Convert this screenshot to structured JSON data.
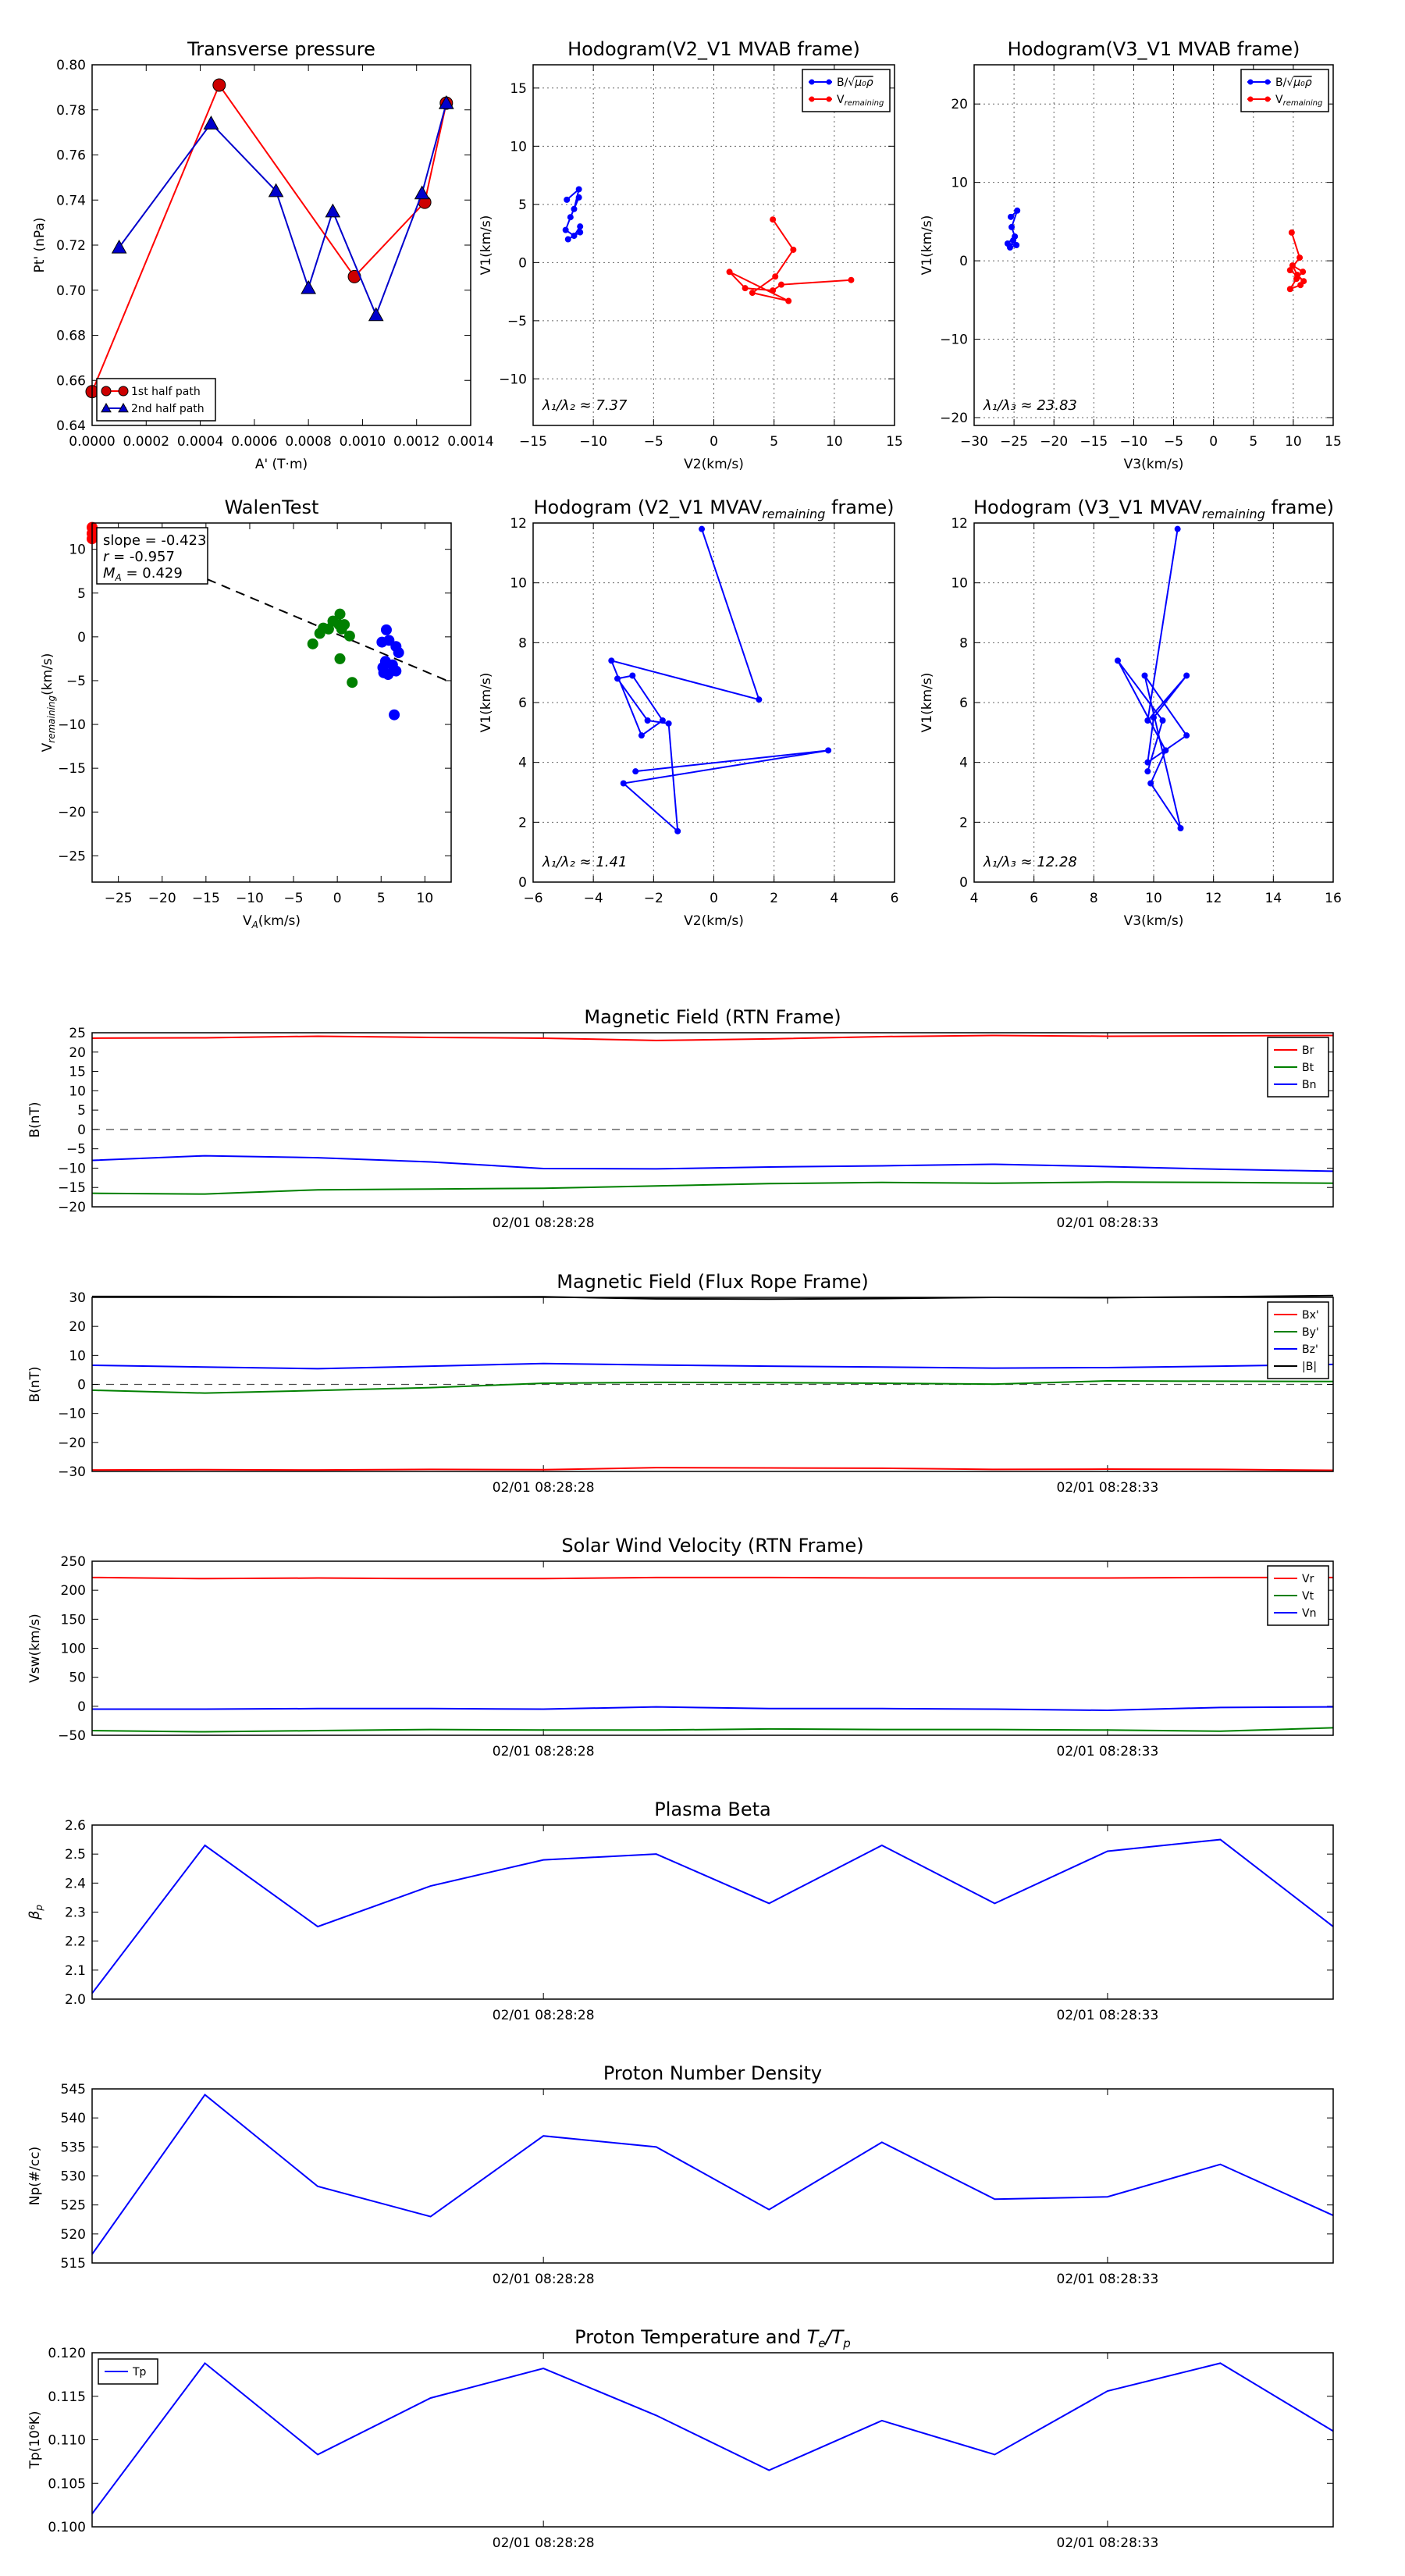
{
  "chart_data": [
    {
      "id": "pt",
      "type": "line",
      "title": "Transverse pressure",
      "xlabel": "A' (T·m)",
      "ylabel": "Pt' (nPa)",
      "xlim": [
        0.0,
        0.0014
      ],
      "ylim": [
        0.64,
        0.8
      ],
      "xticks": [
        0.0,
        0.0002,
        0.0004,
        0.0006,
        0.0008,
        0.001,
        0.0012,
        0.0014
      ],
      "xticklabels": [
        "0.0000",
        "0.0002",
        "0.0004",
        "0.0006",
        "0.0008",
        "0.0010",
        "0.0012",
        "0.0014"
      ],
      "yticks": [
        0.64,
        0.66,
        0.68,
        0.7,
        0.72,
        0.74,
        0.76,
        0.78,
        0.8
      ],
      "yticklabels": [
        "0.64",
        "0.66",
        "0.68",
        "0.70",
        "0.72",
        "0.74",
        "0.76",
        "0.78",
        "0.80"
      ],
      "grid": false,
      "legend": "lower-left",
      "series": [
        {
          "name": "1st half path",
          "color": "#ff0000",
          "marker": "circle",
          "markerColor": "#cc0000",
          "x": [
            0.0,
            0.00047,
            0.00097,
            0.00123,
            0.00131
          ],
          "y": [
            0.655,
            0.791,
            0.706,
            0.739,
            0.783
          ]
        },
        {
          "name": "2nd half path",
          "color": "#0000cc",
          "marker": "triangle",
          "markerColor": "#0000cc",
          "x": [
            0.0001,
            0.00044,
            0.00068,
            0.0008,
            0.00089,
            0.00105,
            0.00122,
            0.00131
          ],
          "y": [
            0.719,
            0.774,
            0.744,
            0.701,
            0.735,
            0.689,
            0.743,
            0.783
          ]
        }
      ]
    },
    {
      "id": "h1",
      "type": "line",
      "title": "Hodogram(V2_V1 MVAB frame)",
      "xlabel": "V2(km/s)",
      "ylabel": "V1(km/s)",
      "xlim": [
        -15,
        15
      ],
      "ylim": [
        -14,
        17
      ],
      "xticks": [
        -15,
        -10,
        -5,
        0,
        5,
        10,
        15
      ],
      "xticklabels": [
        "−15",
        "−10",
        "−5",
        "0",
        "5",
        "10",
        "15"
      ],
      "yticks": [
        -10,
        -5,
        0,
        5,
        10,
        15
      ],
      "yticklabels": [
        "−10",
        "−5",
        "0",
        "5",
        "10",
        "15"
      ],
      "grid": true,
      "legend": "top-right",
      "annotation": "λ₁/λ₂ ≈ 7.37",
      "series": [
        {
          "name": "B/√μ₀ρ",
          "color": "#0000ff",
          "marker": "dot",
          "x": [
            -12.2,
            -11.2,
            -11.6,
            -11.2,
            -11.9,
            -12.3,
            -11.6,
            -11.1,
            -11.1,
            -12.1
          ],
          "y": [
            5.4,
            6.3,
            4.6,
            5.6,
            3.9,
            2.8,
            2.3,
            3.1,
            2.6,
            2.0
          ]
        },
        {
          "name": "V_remaining",
          "color": "#ff0000",
          "marker": "dot",
          "x": [
            4.9,
            6.6,
            5.1,
            3.2,
            6.2,
            1.3,
            2.6,
            4.9,
            5.6,
            11.4
          ],
          "y": [
            3.7,
            1.1,
            -1.2,
            -2.6,
            -3.3,
            -0.8,
            -2.2,
            -2.4,
            -1.9,
            -1.5
          ]
        }
      ]
    },
    {
      "id": "h2",
      "type": "line",
      "title": "Hodogram(V3_V1 MVAB frame)",
      "xlabel": "V3(km/s)",
      "ylabel": "V1(km/s)",
      "xlim": [
        -30,
        15
      ],
      "ylim": [
        -21,
        25
      ],
      "xticks": [
        -30,
        -25,
        -20,
        -15,
        -10,
        -5,
        0,
        5,
        10,
        15
      ],
      "xticklabels": [
        "−30",
        "−25",
        "−20",
        "−15",
        "−10",
        "−5",
        "0",
        "5",
        "10",
        "15"
      ],
      "yticks": [
        -20,
        -10,
        0,
        10,
        20
      ],
      "yticklabels": [
        "−20",
        "−10",
        "0",
        "10",
        "20"
      ],
      "grid": true,
      "legend": "top-right",
      "annotation": "λ₁/λ₃ ≈ 23.83",
      "series": [
        {
          "name": "B/√μ₀ρ",
          "color": "#0000ff",
          "marker": "dot",
          "x": [
            -25.4,
            -24.6,
            -25.3,
            -24.9,
            -25.8,
            -24.7,
            -25.5,
            -25.1
          ],
          "y": [
            5.6,
            6.4,
            4.3,
            3.1,
            2.2,
            2.0,
            1.7,
            2.6
          ]
        },
        {
          "name": "V_remaining",
          "color": "#ff0000",
          "marker": "dot",
          "x": [
            9.8,
            10.8,
            9.6,
            11.3,
            10.5,
            9.9,
            11.2,
            10.4,
            9.6,
            10.9
          ],
          "y": [
            3.6,
            0.4,
            -1.2,
            -2.6,
            -1.8,
            -0.6,
            -1.4,
            -2.3,
            -3.6,
            -3.1
          ]
        }
      ]
    },
    {
      "id": "walen",
      "type": "scatter",
      "title": "WalenTest",
      "xlabel": "V_A(km/s)",
      "ylabel": "V_remaining(km/s)",
      "xlim": [
        -28,
        13
      ],
      "ylim": [
        -28,
        13
      ],
      "xticks": [
        -25,
        -20,
        -15,
        -10,
        -5,
        0,
        5,
        10
      ],
      "xticklabels": [
        "−25",
        "−20",
        "−15",
        "−10",
        "−5",
        "0",
        "5",
        "10"
      ],
      "yticks": [
        -25,
        -20,
        -15,
        -10,
        -5,
        0,
        5,
        10
      ],
      "yticklabels": [
        "−25",
        "−20",
        "−15",
        "−10",
        "−5",
        "0",
        "5",
        "10"
      ],
      "grid": false,
      "fit": {
        "slope": -0.423,
        "intercept": 0.3
      },
      "stats": [
        "slope = -0.423",
        "r = -0.957",
        "M_A = 0.429"
      ],
      "series": [
        {
          "color": "#008000",
          "x": [
            -2.8,
            -2.0,
            -1.6,
            -1.0,
            -0.5,
            0.2,
            0.3,
            0.5,
            0.8,
            0.3,
            1.4,
            1.7
          ],
          "y": [
            -0.8,
            0.4,
            1.0,
            0.9,
            1.8,
            1.4,
            2.6,
            0.9,
            1.4,
            -2.5,
            0.1,
            -5.2
          ]
        },
        {
          "color": "#0000ff",
          "x": [
            5.6,
            5.9,
            6.7,
            7.0,
            5.1,
            5.5,
            6.3,
            5.2,
            6.7,
            5.3,
            5.8,
            6.4,
            6.5
          ],
          "y": [
            0.8,
            -0.4,
            -1.1,
            -1.8,
            -0.6,
            -2.8,
            -3.2,
            -3.5,
            -3.9,
            -4.1,
            -4.3,
            -3.8,
            -8.9
          ]
        },
        {
          "color": "#ff0000",
          "x": [
            -28,
            -28,
            -28
          ],
          "y": [
            12.5,
            11.8,
            11.2
          ]
        }
      ]
    },
    {
      "id": "h3",
      "type": "line",
      "title": "Hodogram (V2_V1 MVAV_remaining frame)",
      "xlabel": "V2(km/s)",
      "ylabel": "V1(km/s)",
      "xlim": [
        -6,
        6
      ],
      "ylim": [
        0,
        12
      ],
      "xticks": [
        -6,
        -4,
        -2,
        0,
        2,
        4,
        6
      ],
      "xticklabels": [
        "−6",
        "−4",
        "−2",
        "0",
        "2",
        "4",
        "6"
      ],
      "yticks": [
        0,
        2,
        4,
        6,
        8,
        10,
        12
      ],
      "yticklabels": [
        "0",
        "2",
        "4",
        "6",
        "8",
        "10",
        "12"
      ],
      "grid": true,
      "annotation": "λ₁/λ₂ ≈ 1.41",
      "series": [
        {
          "color": "#0000ff",
          "marker": "dot",
          "x": [
            -0.4,
            1.5,
            -3.4,
            -2.4,
            -1.7,
            -2.7,
            -3.2,
            -2.2,
            -1.5,
            -1.2,
            -3.0,
            3.8,
            -2.6
          ],
          "y": [
            11.8,
            6.1,
            7.4,
            4.9,
            5.4,
            6.9,
            6.8,
            5.4,
            5.3,
            1.7,
            3.3,
            4.4,
            3.7
          ]
        }
      ]
    },
    {
      "id": "h4",
      "type": "line",
      "title": "Hodogram (V3_V1 MVAV_remaining frame)",
      "xlabel": "V3(km/s)",
      "ylabel": "V1(km/s)",
      "xlim": [
        4,
        16
      ],
      "ylim": [
        0,
        12
      ],
      "xticks": [
        4,
        6,
        8,
        10,
        12,
        14,
        16
      ],
      "xticklabels": [
        "4",
        "6",
        "8",
        "10",
        "12",
        "14",
        "16"
      ],
      "yticks": [
        0,
        2,
        4,
        6,
        8,
        10,
        12
      ],
      "yticklabels": [
        "0",
        "2",
        "4",
        "6",
        "8",
        "10",
        "12"
      ],
      "grid": true,
      "annotation": "λ₁/λ₃ ≈ 12.28",
      "series": [
        {
          "color": "#0000ff",
          "marker": "dot",
          "x": [
            10.8,
            9.8,
            11.1,
            10.0,
            9.8,
            11.1,
            9.7,
            10.9,
            9.9,
            10.4,
            8.8,
            10.3,
            9.8
          ],
          "y": [
            11.8,
            5.4,
            6.9,
            5.5,
            4.0,
            4.9,
            6.9,
            1.8,
            3.3,
            4.4,
            7.4,
            5.4,
            3.7
          ]
        }
      ]
    },
    {
      "id": "bfield",
      "type": "line",
      "title": "Magnetic Field (RTN Frame)",
      "ylabel": "B(nT)",
      "ylim": [
        -20,
        25
      ],
      "yticks": [
        -20,
        -15,
        -10,
        -5,
        0,
        5,
        10,
        15,
        20,
        25
      ],
      "yticklabels": [
        "−20",
        "−15",
        "−10",
        "−5",
        "0",
        "5",
        "10",
        "15",
        "20",
        "25"
      ],
      "xlim": [
        0,
        11
      ],
      "xticks": [
        4,
        9
      ],
      "xticklabels": [
        "02/01 08:28:28",
        "02/01 08:28:33"
      ],
      "zeroline": true,
      "legend": "top-right",
      "x": [
        0,
        1,
        2,
        3,
        4,
        5,
        6,
        7,
        8,
        9,
        10,
        11
      ],
      "series": [
        {
          "name": "Br",
          "color": "#ff0000",
          "values": [
            23.6,
            23.7,
            24.1,
            23.8,
            23.6,
            23.0,
            23.4,
            24.0,
            24.3,
            24.1,
            24.2,
            24.3
          ]
        },
        {
          "name": "Bt",
          "color": "#008000",
          "values": [
            -16.5,
            -16.7,
            -15.6,
            -15.4,
            -15.2,
            -14.6,
            -14.0,
            -13.7,
            -13.9,
            -13.6,
            -13.7,
            -13.9
          ]
        },
        {
          "name": "Bn",
          "color": "#0000ff",
          "values": [
            -8.0,
            -6.8,
            -7.3,
            -8.4,
            -10.1,
            -10.2,
            -9.7,
            -9.4,
            -9.0,
            -9.6,
            -10.3,
            -10.8
          ]
        }
      ]
    },
    {
      "id": "frframe",
      "type": "line",
      "title": "Magnetic Field (Flux Rope Frame)",
      "ylabel": "B(nT)",
      "ylim": [
        -30,
        30
      ],
      "yticks": [
        -30,
        -20,
        -10,
        0,
        10,
        20,
        30
      ],
      "yticklabels": [
        "−30",
        "−20",
        "−10",
        "0",
        "10",
        "20",
        "30"
      ],
      "xlim": [
        0,
        11
      ],
      "xticks": [
        4,
        9
      ],
      "xticklabels": [
        "02/01 08:28:28",
        "02/01 08:28:33"
      ],
      "zeroline": true,
      "legend": "top-right",
      "x": [
        0,
        1,
        2,
        3,
        4,
        5,
        6,
        7,
        8,
        9,
        10,
        11
      ],
      "series": [
        {
          "name": "Bx'",
          "color": "#ff0000",
          "values": [
            -29.5,
            -29.4,
            -29.5,
            -29.3,
            -29.4,
            -28.7,
            -28.8,
            -28.9,
            -29.3,
            -29.2,
            -29.3,
            -29.6
          ]
        },
        {
          "name": "By'",
          "color": "#008000",
          "values": [
            -2.0,
            -3.0,
            -2.1,
            -1.1,
            0.4,
            0.7,
            0.6,
            0.4,
            0.1,
            1.2,
            1.1,
            1.0
          ]
        },
        {
          "name": "Bz'",
          "color": "#0000ff",
          "values": [
            6.6,
            6.0,
            5.4,
            6.3,
            7.2,
            6.7,
            6.3,
            6.0,
            5.6,
            5.8,
            6.3,
            6.9
          ]
        },
        {
          "name": "|B|",
          "color": "#000000",
          "values": [
            30.3,
            30.3,
            30.2,
            30.1,
            30.2,
            29.5,
            29.4,
            29.6,
            30.0,
            29.9,
            30.2,
            30.6
          ]
        }
      ]
    },
    {
      "id": "vsw",
      "type": "line",
      "title": "Solar Wind Velocity (RTN Frame)",
      "ylabel": "Vsw(km/s)",
      "ylim": [
        -50,
        250
      ],
      "yticks": [
        -50,
        0,
        50,
        100,
        150,
        200,
        250
      ],
      "yticklabels": [
        "−50",
        "0",
        "50",
        "100",
        "150",
        "200",
        "250"
      ],
      "xlim": [
        0,
        11
      ],
      "xticks": [
        4,
        9
      ],
      "xticklabels": [
        "02/01 08:28:28",
        "02/01 08:28:33"
      ],
      "legend": "top-right",
      "x": [
        0,
        1,
        2,
        3,
        4,
        5,
        6,
        7,
        8,
        9,
        10,
        11
      ],
      "series": [
        {
          "name": "Vr",
          "color": "#ff0000",
          "values": [
            222,
            220,
            221,
            220,
            220,
            222,
            222,
            221,
            221,
            221,
            222,
            222
          ]
        },
        {
          "name": "Vt",
          "color": "#008000",
          "values": [
            -42,
            -44,
            -42,
            -40,
            -41,
            -41,
            -39,
            -40,
            -40,
            -41,
            -43,
            -37
          ]
        },
        {
          "name": "Vn",
          "color": "#0000ff",
          "values": [
            -5,
            -5,
            -4,
            -4,
            -5,
            -1,
            -4,
            -4,
            -5,
            -7,
            -2,
            -1
          ]
        }
      ]
    },
    {
      "id": "beta",
      "type": "line",
      "title": "Plasma Beta",
      "ylabel": "β_p",
      "ylim": [
        2.0,
        2.6
      ],
      "yticks": [
        2.0,
        2.1,
        2.2,
        2.3,
        2.4,
        2.5,
        2.6
      ],
      "yticklabels": [
        "2.0",
        "2.1",
        "2.2",
        "2.3",
        "2.4",
        "2.5",
        "2.6"
      ],
      "xlim": [
        0,
        11
      ],
      "xticks": [
        4,
        9
      ],
      "xticklabels": [
        "02/01 08:28:28",
        "02/01 08:28:33"
      ],
      "x": [
        0,
        1,
        2,
        3,
        4,
        5,
        6,
        7,
        8,
        9,
        10,
        11
      ],
      "series": [
        {
          "color": "#0000ff",
          "values": [
            2.02,
            2.53,
            2.25,
            2.39,
            2.48,
            2.5,
            2.33,
            2.53,
            2.33,
            2.51,
            2.55,
            2.25
          ]
        }
      ]
    },
    {
      "id": "np",
      "type": "line",
      "title": "Proton Number Density",
      "ylabel": "Np(#/cc)",
      "ylim": [
        515,
        545
      ],
      "yticks": [
        515,
        520,
        525,
        530,
        535,
        540,
        545
      ],
      "yticklabels": [
        "515",
        "520",
        "525",
        "530",
        "535",
        "540",
        "545"
      ],
      "xlim": [
        0,
        11
      ],
      "xticks": [
        4,
        9
      ],
      "xticklabels": [
        "02/01 08:28:28",
        "02/01 08:28:33"
      ],
      "x": [
        0,
        1,
        2,
        3,
        4,
        5,
        6,
        7,
        8,
        9,
        10,
        11
      ],
      "series": [
        {
          "color": "#0000ff",
          "values": [
            516.5,
            544.0,
            528.2,
            523.0,
            536.9,
            535.0,
            524.2,
            535.8,
            526.0,
            526.4,
            532.0,
            523.2
          ]
        }
      ]
    },
    {
      "id": "tp",
      "type": "line",
      "title": "Proton Temperature and T_e/T_p",
      "ylabel": "Tp(10⁶K)",
      "ylim": [
        0.1,
        0.12
      ],
      "yticks": [
        0.1,
        0.105,
        0.11,
        0.115,
        0.12
      ],
      "yticklabels": [
        "0.100",
        "0.105",
        "0.110",
        "0.115",
        "0.120"
      ],
      "xlim": [
        0,
        11
      ],
      "xticks": [
        4,
        9
      ],
      "xticklabels": [
        "02/01 08:28:28",
        "02/01 08:28:33"
      ],
      "legend": "top-left",
      "x": [
        0,
        1,
        2,
        3,
        4,
        5,
        6,
        7,
        8,
        9,
        10,
        11
      ],
      "series": [
        {
          "name": "Tp",
          "color": "#0000ff",
          "values": [
            0.1015,
            0.1188,
            0.1083,
            0.1148,
            0.1182,
            0.1128,
            0.1065,
            0.1122,
            0.1083,
            0.1156,
            0.1188,
            0.111
          ]
        }
      ]
    }
  ]
}
